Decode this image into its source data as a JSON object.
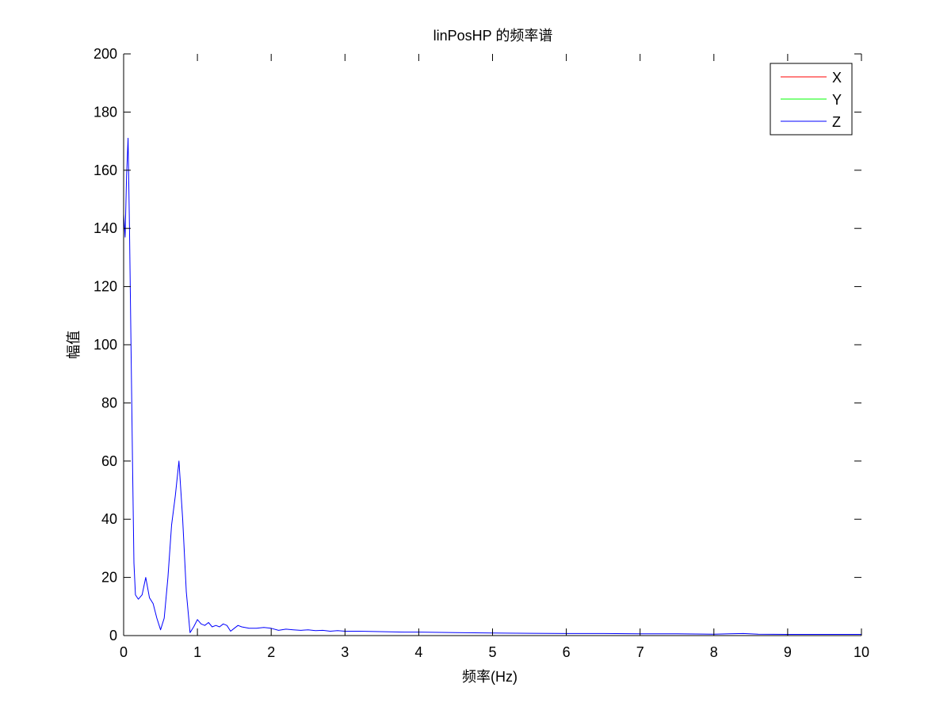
{
  "chart_data": {
    "type": "line",
    "title": "linPosHP 的频率谱",
    "xlabel": "频率(Hz)",
    "ylabel": "幅值",
    "xlim": [
      0,
      10
    ],
    "ylim": [
      0,
      200
    ],
    "xticks": [
      0,
      1,
      2,
      3,
      4,
      5,
      6,
      7,
      8,
      9,
      10
    ],
    "yticks": [
      0,
      20,
      40,
      60,
      80,
      100,
      120,
      140,
      160,
      180,
      200
    ],
    "grid": false,
    "legend_position": "top-right",
    "series": [
      {
        "name": "X",
        "color": "#ff0000",
        "x": [
          0,
          10
        ],
        "y": [
          0,
          0
        ]
      },
      {
        "name": "Y",
        "color": "#00ff00",
        "x": [
          0,
          10
        ],
        "y": [
          0,
          0
        ]
      },
      {
        "name": "Z",
        "color": "#0000ff",
        "x": [
          0,
          0.02,
          0.04,
          0.06,
          0.08,
          0.1,
          0.12,
          0.14,
          0.16,
          0.2,
          0.25,
          0.3,
          0.35,
          0.4,
          0.45,
          0.5,
          0.55,
          0.6,
          0.65,
          0.7,
          0.75,
          0.8,
          0.85,
          0.9,
          0.95,
          1.0,
          1.05,
          1.1,
          1.15,
          1.2,
          1.25,
          1.3,
          1.35,
          1.4,
          1.45,
          1.5,
          1.55,
          1.6,
          1.7,
          1.8,
          1.9,
          2.0,
          2.1,
          2.2,
          2.3,
          2.4,
          2.5,
          2.6,
          2.7,
          2.8,
          2.9,
          3.0,
          3.2,
          3.4,
          3.6,
          3.8,
          4.0,
          4.5,
          5.0,
          5.5,
          6.0,
          6.5,
          7.0,
          7.5,
          8.0,
          8.2,
          8.4,
          8.6,
          9.0,
          9.5,
          10.0
        ],
        "y": [
          145,
          137,
          158,
          171,
          140,
          100,
          60,
          25,
          14,
          12.5,
          14,
          20,
          13,
          11,
          6,
          2,
          6,
          20,
          38,
          48,
          60,
          40,
          15,
          1,
          3,
          5.5,
          4,
          3.5,
          4.5,
          3,
          3.5,
          3,
          4,
          3.5,
          1.5,
          2.5,
          3.5,
          3,
          2.5,
          2.5,
          2.8,
          2.5,
          1.8,
          2.2,
          2,
          1.8,
          2,
          1.7,
          1.8,
          1.5,
          1.7,
          1.5,
          1.5,
          1.4,
          1.3,
          1.2,
          1.2,
          1.0,
          0.9,
          0.8,
          0.7,
          0.7,
          0.6,
          0.6,
          0.5,
          0.6,
          0.7,
          0.5,
          0.4,
          0.4,
          0.4
        ]
      }
    ]
  }
}
